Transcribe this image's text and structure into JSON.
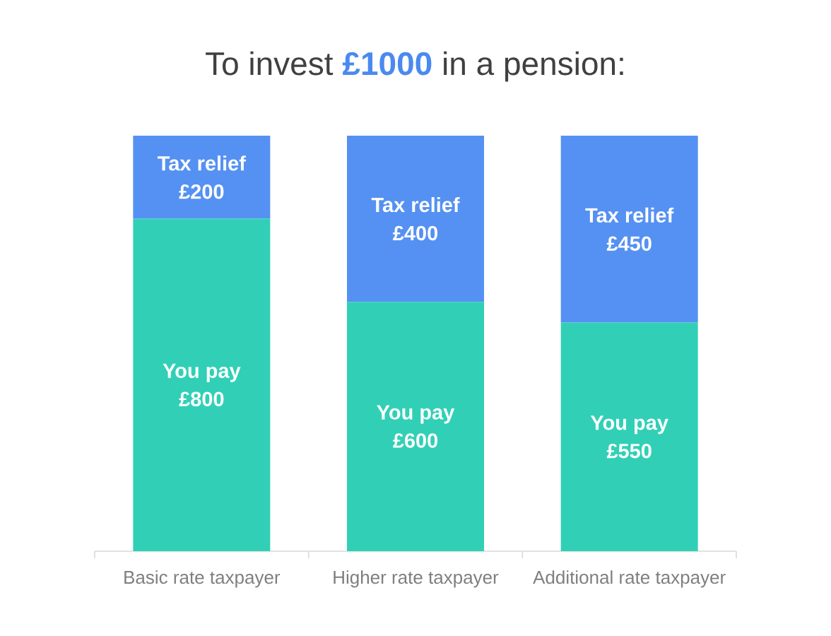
{
  "chart_data": {
    "type": "bar",
    "title": "To invest **£1000** in a pension:",
    "categories": [
      "Basic rate taxpayer",
      "Higher rate taxpayer",
      "Additional rate taxpayer"
    ],
    "stacked": true,
    "series": [
      {
        "name": "You pay",
        "color": "#31d0b6",
        "values": [
          800,
          600,
          550
        ],
        "value_labels": [
          "£800",
          "£600",
          "£550"
        ]
      },
      {
        "name": "Tax relief",
        "color": "#5591f2",
        "values": [
          200,
          400,
          450
        ],
        "value_labels": [
          "£200",
          "£400",
          "£450"
        ]
      }
    ]
  }
}
